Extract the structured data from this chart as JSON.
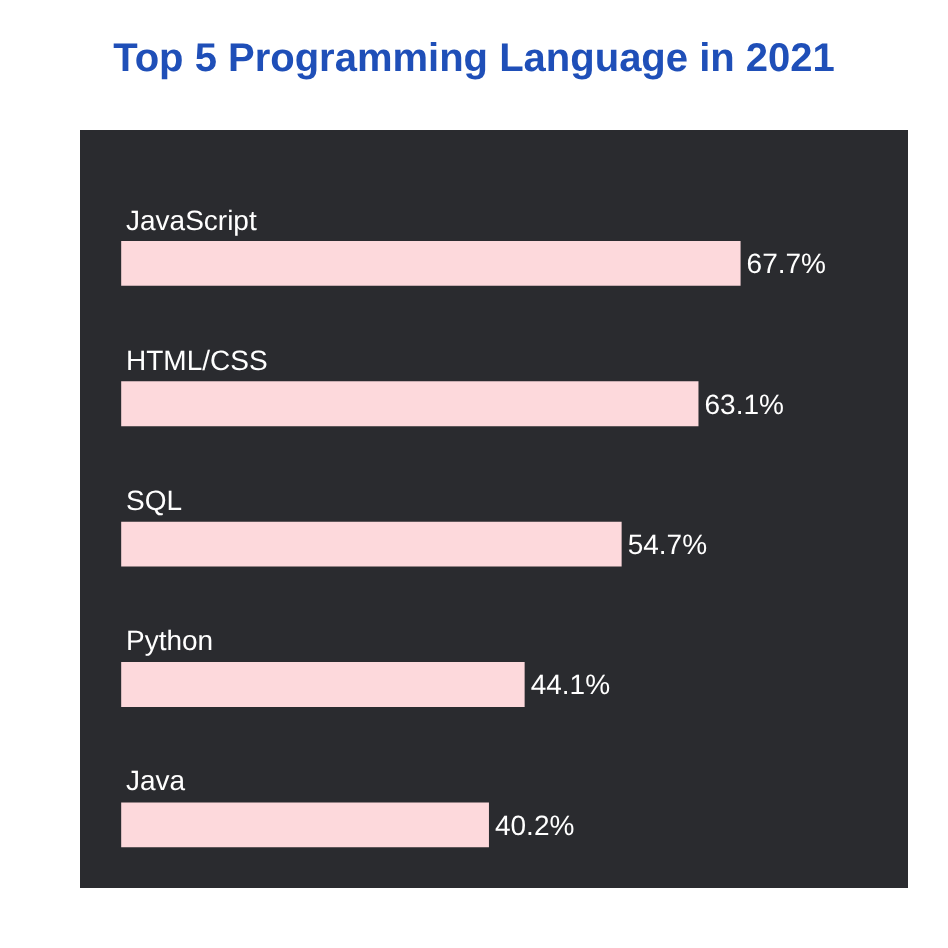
{
  "chart_data": {
    "type": "bar",
    "orientation": "horizontal",
    "title": "Top 5 Programming Language in 2021",
    "categories": [
      "JavaScript",
      "HTML/CSS",
      "SQL",
      "Python",
      "Java"
    ],
    "values": [
      67.7,
      63.1,
      54.7,
      44.1,
      40.2
    ],
    "value_labels": [
      "67.7%",
      "63.1%",
      "54.7%",
      "44.1%",
      "40.2%"
    ],
    "color": "#fdd9dc",
    "xlim": [
      -4.5,
      86
    ]
  }
}
